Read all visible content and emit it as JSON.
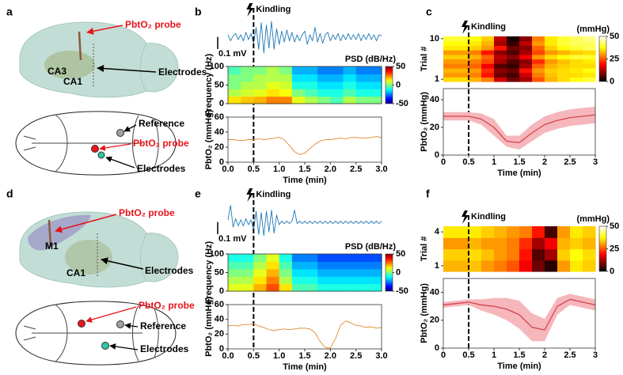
{
  "panel_labels": [
    "a",
    "b",
    "c",
    "d",
    "e",
    "f"
  ],
  "diagrams": [
    {
      "sagittal": [
        "PbtO₂ probe",
        "CA3",
        "CA1",
        "Electrodes"
      ],
      "dorsal": [
        "Reference",
        "PbtO₂ probe",
        "Electrodes"
      ]
    },
    {
      "sagittal": [
        "PbtO₂ probe",
        "M1",
        "CA1",
        "Electrodes"
      ],
      "dorsal": [
        "PbtO₂ probe",
        "Reference",
        "Electrodes"
      ]
    }
  ],
  "chart_data": [
    {
      "type": "line",
      "annotation": "Kindling",
      "event_x": 0.5,
      "color": "#1f78b4",
      "xlim": [
        0,
        3
      ],
      "ylim": [
        -0.15,
        0.15
      ],
      "scale_bar": {
        "label": "0.1 mV",
        "value": 0.1
      },
      "x": [
        0,
        0.05,
        0.1,
        0.15,
        0.2,
        0.25,
        0.3,
        0.35,
        0.4,
        0.45,
        0.5,
        0.55,
        0.6,
        0.65,
        0.7,
        0.75,
        0.8,
        0.85,
        0.9,
        0.95,
        1,
        1.05,
        1.1,
        1.15,
        1.2,
        1.25,
        1.3,
        1.35,
        1.4,
        1.45,
        1.5,
        1.55,
        1.6,
        1.65,
        1.7,
        1.75,
        1.8,
        1.85,
        1.9,
        1.95,
        2,
        2.05,
        2.1,
        2.15,
        2.2,
        2.25,
        2.3,
        2.35,
        2.4,
        2.45,
        2.5,
        2.55,
        2.6,
        2.65,
        2.7,
        2.75,
        2.8,
        2.85,
        2.9,
        2.95,
        3
      ],
      "values": [
        0.02,
        -0.03,
        0.01,
        0.03,
        -0.02,
        0.02,
        -0.03,
        0.04,
        -0.02,
        0.03,
        -0.05,
        0.08,
        -0.1,
        0.12,
        -0.13,
        0.1,
        -0.09,
        0.13,
        -0.1,
        0.07,
        -0.06,
        0.05,
        -0.04,
        0.06,
        -0.03,
        0.04,
        -0.04,
        0.02,
        -0.03,
        0.02,
        0.05,
        -0.06,
        0.02,
        -0.03,
        0.08,
        -0.04,
        0.03,
        -0.05,
        0.02,
        0.04,
        -0.03,
        0.02,
        -0.02,
        0.03,
        -0.03,
        0.02,
        -0.02,
        0.03,
        -0.02,
        0.02,
        -0.02,
        0.03,
        -0.03,
        0.02,
        -0.02,
        0.03,
        -0.02,
        0.02,
        -0.03,
        0.02,
        0.01
      ]
    },
    {
      "type": "heatmap",
      "ylabel": "Frequency (Hz)",
      "colorbar_label": "PSD (dB/Hz)",
      "colormap": "jet",
      "xlim": [
        0,
        3
      ],
      "ylim": [
        0,
        100
      ],
      "yticks": [
        0,
        50,
        100
      ],
      "clim": [
        -50,
        50
      ],
      "cticks": [
        50,
        0,
        -50
      ],
      "values": [
        [
          15,
          18,
          20,
          25,
          25,
          10,
          5,
          0,
          -5,
          5,
          0,
          0
        ],
        [
          5,
          8,
          10,
          15,
          12,
          0,
          -5,
          -10,
          -10,
          -5,
          -10,
          -10
        ],
        [
          0,
          5,
          5,
          10,
          8,
          -10,
          -10,
          -15,
          -15,
          -10,
          -15,
          -15
        ],
        [
          0,
          0,
          5,
          5,
          5,
          -15,
          -15,
          -20,
          -20,
          -15,
          -20,
          -20
        ],
        [
          -5,
          0,
          0,
          5,
          0,
          -20,
          -20,
          -25,
          -25,
          -20,
          -25,
          -25
        ]
      ]
    },
    {
      "type": "line",
      "xlabel": "Time (min)",
      "ylabel": "PbtO₂ (mmHg)",
      "color": "#e08a2c",
      "xlim": [
        0,
        3
      ],
      "ylim": [
        0,
        60
      ],
      "xticks": [
        {
          "value": 0,
          "label": "0.0"
        },
        0.5,
        {
          "value": 1,
          "label": "1.0"
        },
        1.5,
        {
          "value": 2,
          "label": "2.0"
        },
        2.5,
        {
          "value": 3,
          "label": "3.0"
        }
      ],
      "yticks": [
        0,
        20,
        40,
        60
      ],
      "x": [
        0,
        0.1,
        0.2,
        0.3,
        0.4,
        0.5,
        0.6,
        0.7,
        0.8,
        0.9,
        1,
        1.1,
        1.2,
        1.3,
        1.4,
        1.5,
        1.6,
        1.7,
        1.8,
        1.9,
        2,
        2.1,
        2.2,
        2.3,
        2.4,
        2.5,
        2.6,
        2.7,
        2.8,
        2.9,
        3
      ],
      "values": [
        30,
        30,
        29,
        29,
        30,
        30,
        31,
        30,
        31,
        32,
        33,
        30,
        22,
        14,
        10,
        12,
        18,
        24,
        28,
        30,
        30,
        31,
        32,
        31,
        33,
        33,
        32,
        32,
        33,
        34,
        33
      ]
    },
    {
      "type": "heatmap",
      "annotation": "Kindling",
      "event_x": 0.5,
      "ylabel": "Trial #",
      "colorbar_label": "(mmHg)",
      "colormap": "hot",
      "xlim": [
        0,
        3
      ],
      "ylim": [
        0.5,
        10.5
      ],
      "yticks": [
        1,
        10
      ],
      "clim": [
        0,
        50
      ],
      "cticks": [
        50,
        25,
        0
      ],
      "values": [
        [
          35,
          35,
          32,
          28,
          15,
          8,
          12,
          25,
          32,
          35,
          38,
          40
        ],
        [
          30,
          30,
          28,
          20,
          8,
          5,
          15,
          28,
          33,
          35,
          35,
          36
        ],
        [
          32,
          32,
          30,
          22,
          10,
          8,
          20,
          30,
          34,
          35,
          36,
          38
        ],
        [
          28,
          28,
          26,
          18,
          6,
          4,
          12,
          26,
          32,
          34,
          35,
          35
        ],
        [
          30,
          30,
          28,
          24,
          12,
          6,
          10,
          22,
          30,
          33,
          35,
          36
        ],
        [
          34,
          34,
          32,
          26,
          14,
          10,
          18,
          30,
          35,
          38,
          40,
          40
        ],
        [
          30,
          30,
          28,
          20,
          10,
          6,
          12,
          24,
          30,
          32,
          34,
          35
        ],
        [
          36,
          36,
          34,
          30,
          20,
          8,
          10,
          26,
          34,
          38,
          40,
          42
        ],
        [
          38,
          38,
          36,
          32,
          12,
          4,
          14,
          30,
          36,
          40,
          42,
          42
        ],
        [
          40,
          40,
          38,
          34,
          14,
          2,
          10,
          28,
          36,
          40,
          42,
          44
        ]
      ]
    },
    {
      "type": "line",
      "xlabel": "Time (min)",
      "ylabel": "PbtO₂ (mmHg)",
      "color": "#d7434e",
      "band_color": "#f5b7bc",
      "xlim": [
        0,
        3
      ],
      "ylim": [
        0,
        48
      ],
      "xticks": [
        0,
        0.5,
        1,
        1.5,
        2,
        2.5,
        3
      ],
      "yticks": [
        0,
        20,
        40
      ],
      "x": [
        0,
        0.25,
        0.5,
        0.75,
        1,
        1.25,
        1.5,
        1.75,
        2,
        2.25,
        2.5,
        2.75,
        3
      ],
      "values": [
        28,
        28,
        28,
        26,
        20,
        10,
        9,
        16,
        22,
        25,
        27,
        28,
        29
      ],
      "error": [
        3,
        3,
        3,
        4,
        6,
        4,
        5,
        6,
        6,
        6,
        6,
        6,
        6
      ]
    },
    {
      "type": "line",
      "annotation": "Kindling",
      "event_x": 0.5,
      "color": "#1f78b4",
      "xlim": [
        0,
        3
      ],
      "ylim": [
        -0.15,
        0.15
      ],
      "scale_bar": {
        "label": "0.1 mV",
        "value": 0.1
      },
      "x": [
        0,
        0.05,
        0.1,
        0.15,
        0.2,
        0.25,
        0.3,
        0.35,
        0.4,
        0.45,
        0.5,
        0.55,
        0.6,
        0.65,
        0.7,
        0.75,
        0.8,
        0.85,
        0.9,
        0.95,
        1,
        1.05,
        1.1,
        1.15,
        1.2,
        1.25,
        1.3,
        1.35,
        1.4,
        1.45,
        1.5,
        1.55,
        1.6,
        1.65,
        1.7,
        1.75,
        1.8,
        1.85,
        1.9,
        1.95,
        2,
        2.05,
        2.1,
        2.15,
        2.2,
        2.25,
        2.3,
        2.35,
        2.4,
        2.45,
        2.5,
        2.55,
        2.6,
        2.65,
        2.7,
        2.75,
        2.8,
        2.85,
        2.9,
        2.95,
        3
      ],
      "values": [
        0.02,
        0.14,
        -0.04,
        0.03,
        -0.03,
        0.02,
        -0.03,
        0.03,
        -0.02,
        0.02,
        -0.06,
        0.09,
        -0.1,
        0.08,
        -0.11,
        0.09,
        -0.08,
        0.1,
        -0.09,
        0.06,
        -0.02,
        0.01,
        -0.01,
        0.01,
        -0.01,
        0.01,
        0.1,
        -0.01,
        0.01,
        -0.01,
        0.01,
        -0.01,
        0.01,
        -0.01,
        0.01,
        -0.01,
        0.01,
        -0.01,
        0.01,
        -0.01,
        0.01,
        -0.01,
        0.01,
        -0.01,
        0.01,
        -0.01,
        0.01,
        -0.01,
        0.01,
        -0.01,
        0.01,
        -0.01,
        0.01,
        -0.01,
        0.01,
        -0.01,
        0.01,
        -0.01,
        0.01,
        -0.01,
        0.01
      ]
    },
    {
      "type": "heatmap",
      "ylabel": "Frequency (Hz)",
      "colorbar_label": "PSD (dB/Hz)",
      "colormap": "jet",
      "xlim": [
        0,
        3
      ],
      "ylim": [
        0,
        100
      ],
      "yticks": [
        0,
        50,
        100
      ],
      "clim": [
        -50,
        50
      ],
      "cticks": [
        50,
        0,
        -50
      ],
      "values": [
        [
          10,
          10,
          20,
          30,
          15,
          -5,
          -5,
          -10,
          -10,
          -10,
          -10,
          -10
        ],
        [
          5,
          5,
          15,
          25,
          5,
          -10,
          -10,
          -15,
          -15,
          -15,
          -15,
          -15
        ],
        [
          0,
          0,
          10,
          20,
          0,
          -15,
          -15,
          -20,
          -20,
          -20,
          -20,
          -20
        ],
        [
          -5,
          -5,
          5,
          15,
          -5,
          -20,
          -20,
          -25,
          -25,
          -25,
          -25,
          -25
        ],
        [
          -10,
          -10,
          0,
          10,
          -10,
          -25,
          -25,
          -30,
          -30,
          -30,
          -30,
          -30
        ]
      ]
    },
    {
      "type": "line",
      "xlabel": "Time (min)",
      "ylabel": "PbtO₂ (mmHg)",
      "color": "#e08a2c",
      "xlim": [
        0,
        3
      ],
      "ylim": [
        0,
        60
      ],
      "xticks": [
        {
          "value": 0,
          "label": "0.0"
        },
        0.5,
        {
          "value": 1,
          "label": "1.0"
        },
        1.5,
        {
          "value": 2,
          "label": "2.0"
        },
        2.5,
        {
          "value": 3,
          "label": "3.0"
        }
      ],
      "yticks": [
        0,
        20,
        40,
        60
      ],
      "x": [
        0,
        0.1,
        0.2,
        0.3,
        0.4,
        0.5,
        0.6,
        0.7,
        0.8,
        0.9,
        1,
        1.1,
        1.2,
        1.3,
        1.4,
        1.5,
        1.6,
        1.7,
        1.8,
        1.9,
        2,
        2.1,
        2.2,
        2.3,
        2.4,
        2.5,
        2.6,
        2.7,
        2.8,
        2.9,
        3
      ],
      "values": [
        31,
        32,
        31,
        33,
        33,
        34,
        31,
        29,
        26,
        25,
        26,
        27,
        26,
        27,
        28,
        28,
        27,
        22,
        10,
        2,
        1,
        14,
        32,
        38,
        35,
        32,
        31,
        29,
        30,
        28,
        29
      ]
    },
    {
      "type": "heatmap",
      "annotation": "Kindling",
      "event_x": 0.5,
      "ylabel": "Trial #",
      "colorbar_label": "(mmHg)",
      "colormap": "hot",
      "xlim": [
        0,
        3
      ],
      "ylim": [
        0.5,
        4.5
      ],
      "yticks": [
        1,
        4
      ],
      "clim": [
        0,
        50
      ],
      "cticks": [
        50,
        25,
        0
      ],
      "values": [
        [
          32,
          32,
          33,
          30,
          28,
          25,
          18,
          8,
          3,
          30,
          36,
          34
        ],
        [
          34,
          34,
          35,
          33,
          30,
          28,
          20,
          6,
          12,
          34,
          38,
          35
        ],
        [
          30,
          30,
          32,
          30,
          30,
          28,
          22,
          12,
          18,
          32,
          34,
          32
        ],
        [
          36,
          36,
          36,
          34,
          32,
          30,
          28,
          20,
          5,
          30,
          36,
          34
        ]
      ]
    },
    {
      "type": "line",
      "xlabel": "Time (min)",
      "ylabel": "PbtO₂ (mmHg)",
      "color": "#d7434e",
      "band_color": "#f5b7bc",
      "xlim": [
        0,
        3
      ],
      "ylim": [
        0,
        50
      ],
      "xticks": [
        0,
        0.5,
        1,
        1.5,
        2,
        2.5,
        3
      ],
      "yticks": [
        0,
        20,
        40
      ],
      "x": [
        0,
        0.25,
        0.5,
        0.75,
        1,
        1.25,
        1.5,
        1.75,
        2,
        2.25,
        2.5,
        2.75,
        3
      ],
      "values": [
        31,
        32,
        33,
        31,
        30,
        28,
        24,
        15,
        13,
        30,
        35,
        33,
        31
      ],
      "error": [
        2,
        2,
        2,
        4,
        6,
        8,
        10,
        10,
        8,
        6,
        4,
        4,
        4
      ]
    }
  ]
}
